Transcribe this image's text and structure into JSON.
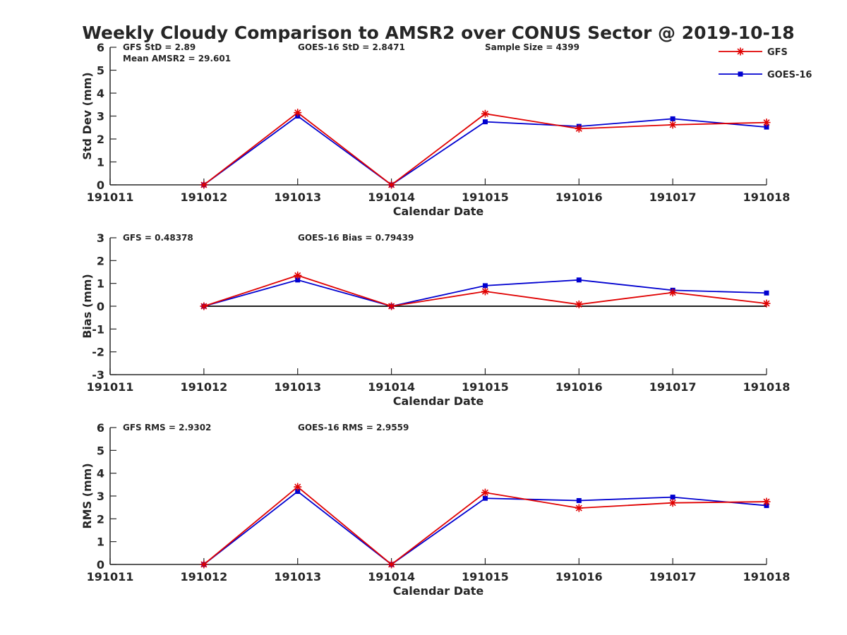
{
  "title": "Weekly Cloudy Comparison to AMSR2 over CONUS Sector @ 2019-10-18",
  "legend": [
    {
      "name": "GFS",
      "color": "#e00000",
      "marker": "star"
    },
    {
      "name": "GOES-16",
      "color": "#0000d0",
      "marker": "square"
    }
  ],
  "chart_data": [
    {
      "type": "line",
      "id": "stddev",
      "ylabel": "Std Dev (mm)",
      "xlabel": "Calendar Date",
      "x": [
        "191011",
        "191012",
        "191013",
        "191014",
        "191015",
        "191016",
        "191017",
        "191018"
      ],
      "ylim": [
        0,
        6
      ],
      "yticks": [
        "0",
        "1",
        "2",
        "3",
        "4",
        "5",
        "6"
      ],
      "zero_line": false,
      "series": [
        {
          "name": "GFS",
          "values": [
            null,
            0,
            3.15,
            0,
            3.1,
            2.45,
            2.62,
            2.72
          ]
        },
        {
          "name": "GOES-16",
          "values": [
            null,
            0,
            3.0,
            0,
            2.75,
            2.55,
            2.88,
            2.52
          ]
        }
      ],
      "annotations": [
        {
          "key": "gfs",
          "text": "GFS StD = 2.89"
        },
        {
          "key": "goes",
          "text": "GOES-16 StD = 2.8471"
        },
        {
          "key": "size",
          "text": "Sample Size = 4399"
        },
        {
          "key": "mean",
          "text": "Mean AMSR2 = 29.601"
        }
      ]
    },
    {
      "type": "line",
      "id": "bias",
      "ylabel": "Bias (mm)",
      "xlabel": "Calendar Date",
      "x": [
        "191011",
        "191012",
        "191013",
        "191014",
        "191015",
        "191016",
        "191017",
        "191018"
      ],
      "ylim": [
        -3,
        3
      ],
      "yticks": [
        "-3",
        "-2",
        "-1",
        "0",
        "1",
        "2",
        "3"
      ],
      "zero_line": true,
      "series": [
        {
          "name": "GFS",
          "values": [
            null,
            0,
            1.35,
            0,
            0.65,
            0.08,
            0.6,
            0.12
          ]
        },
        {
          "name": "GOES-16",
          "values": [
            null,
            0,
            1.15,
            0,
            0.9,
            1.15,
            0.7,
            0.58
          ]
        }
      ],
      "annotations": [
        {
          "key": "gfs",
          "text": "GFS = 0.48378"
        },
        {
          "key": "goes",
          "text": "GOES-16 Bias  = 0.79439"
        }
      ]
    },
    {
      "type": "line",
      "id": "rms",
      "ylabel": "RMS (mm)",
      "xlabel": "Calendar Date",
      "x": [
        "191011",
        "191012",
        "191013",
        "191014",
        "191015",
        "191016",
        "191017",
        "191018"
      ],
      "ylim": [
        0,
        6
      ],
      "yticks": [
        "0",
        "1",
        "2",
        "3",
        "4",
        "5",
        "6"
      ],
      "zero_line": false,
      "series": [
        {
          "name": "GFS",
          "values": [
            null,
            0,
            3.4,
            0,
            3.15,
            2.47,
            2.7,
            2.75
          ]
        },
        {
          "name": "GOES-16",
          "values": [
            null,
            0,
            3.2,
            0,
            2.9,
            2.8,
            2.95,
            2.58
          ]
        }
      ],
      "annotations": [
        {
          "key": "gfs",
          "text": "GFS RMS = 2.9302"
        },
        {
          "key": "goes",
          "text": "GOES-16 RMS = 2.9559"
        }
      ]
    }
  ]
}
